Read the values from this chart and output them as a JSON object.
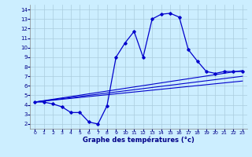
{
  "xlabel": "Graphe des températures (°c)",
  "bg_color": "#cceeff",
  "grid_color": "#aaccdd",
  "line_color": "#0000cc",
  "xlim": [
    -0.5,
    23.5
  ],
  "ylim": [
    1.5,
    14.5
  ],
  "xticks": [
    0,
    1,
    2,
    3,
    4,
    5,
    6,
    7,
    8,
    9,
    10,
    11,
    12,
    13,
    14,
    15,
    16,
    17,
    18,
    19,
    20,
    21,
    22,
    23
  ],
  "yticks": [
    2,
    3,
    4,
    5,
    6,
    7,
    8,
    9,
    10,
    11,
    12,
    13,
    14
  ],
  "curve1_x": [
    0,
    1,
    2,
    3,
    4,
    5,
    6,
    7,
    8,
    9,
    10,
    11,
    12,
    13,
    14,
    15,
    16,
    17,
    18,
    19,
    20,
    21,
    22,
    23
  ],
  "curve1_y": [
    4.3,
    4.3,
    4.1,
    3.8,
    3.2,
    3.2,
    2.2,
    2.0,
    3.9,
    9.0,
    10.5,
    11.7,
    9.0,
    13.0,
    13.5,
    13.6,
    13.2,
    9.8,
    8.6,
    7.5,
    7.3,
    7.5,
    7.5,
    7.5
  ],
  "line2_x": [
    0,
    23
  ],
  "line2_y": [
    4.3,
    7.6
  ],
  "line3_x": [
    0,
    23
  ],
  "line3_y": [
    4.3,
    6.5
  ],
  "line4_x": [
    0,
    23
  ],
  "line4_y": [
    4.3,
    7.0
  ]
}
